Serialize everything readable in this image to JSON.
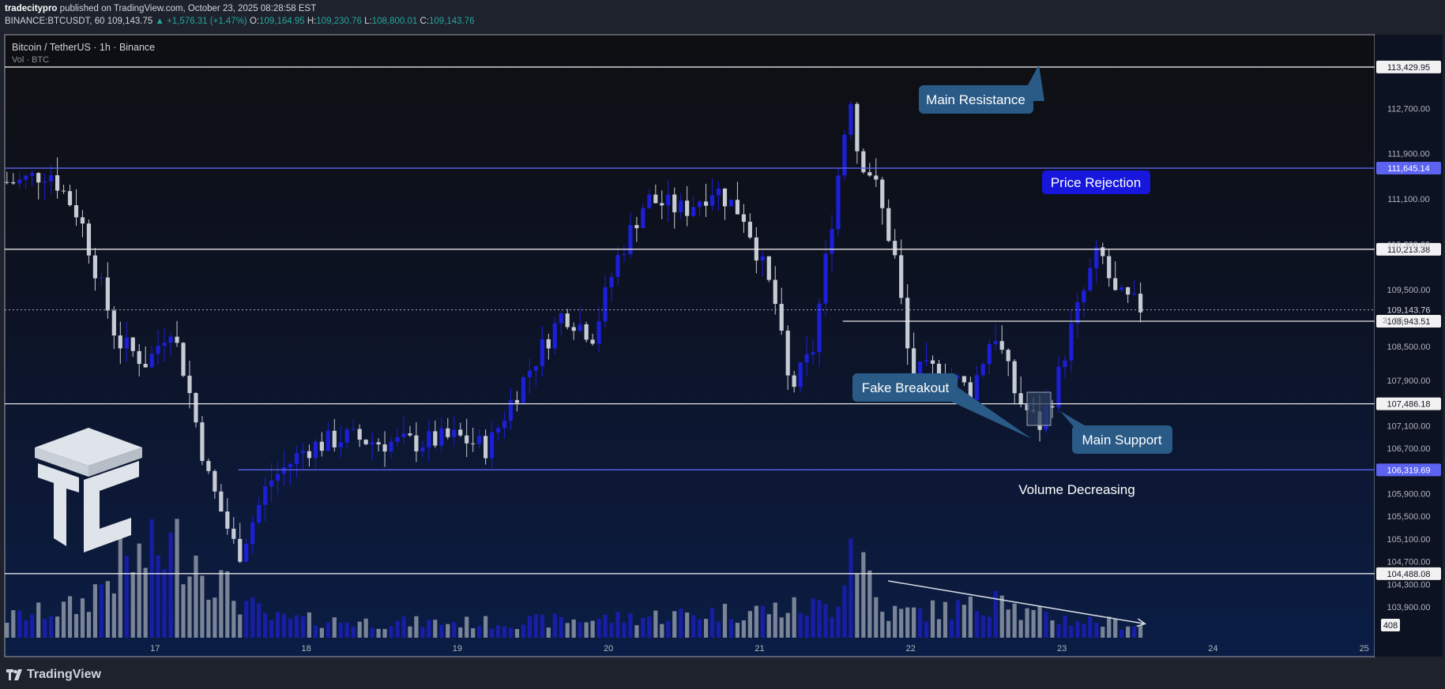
{
  "header": {
    "publisher": "tradecitypro",
    "published_text": "published on TradingView.com, October 23, 2025 08:28:58 EST",
    "symbol_line": {
      "symbol": "BINANCE:BTCUSDT, 60",
      "last": "109,143.75",
      "change": "+1,576.31 (+1.47%)",
      "o_label": "O:",
      "o": "109,164.95",
      "h_label": "H:",
      "h": "109,230.76",
      "l_label": "L:",
      "l": "108,800.01",
      "c_label": "C:",
      "c": "109,143.76"
    }
  },
  "legend": {
    "title": "Bitcoin / TetherUS · 1h · Binance",
    "volume_label": "Vol · BTC"
  },
  "footer": {
    "brand": "TradingView"
  },
  "colors": {
    "background_top": "#0f1013",
    "background_bottom": "#0c1a3b",
    "bull": "#1c1fd8",
    "bear": "#c7ccd4",
    "level_white": "#e6e6e6",
    "level_blue": "#5b63f0",
    "callout": "#2a5a86",
    "callout_bright": "#1616dd"
  },
  "chart_data": {
    "type": "candlestick",
    "price_axis": {
      "ticks": [
        "112,700.00",
        "111,900.00",
        "111,100.00",
        "110,300.00",
        "109,500.00",
        "108,500.00",
        "107,900.00",
        "107,100.00",
        "106,700.00",
        "105,900.00",
        "105,500.00",
        "105,100.00",
        "104,700.00",
        "104,300.00",
        "103,900.00"
      ],
      "tick_values": [
        112700,
        111900,
        111100,
        110300,
        109500,
        108500,
        107900,
        107100,
        106700,
        105900,
        105500,
        105100,
        104700,
        104300,
        103900
      ],
      "ylim": [
        103580,
        114000
      ]
    },
    "time_axis": {
      "labels": [
        "17",
        "18",
        "19",
        "20",
        "21",
        "22",
        "23",
        "24",
        "25"
      ]
    },
    "current_price": {
      "value": 109143.76,
      "label": "109,143.76",
      "countdown": "31:05"
    },
    "volume_last": "408",
    "levels": [
      {
        "name": "main-resistance-line",
        "value": 113429.95,
        "label": "113,429.95",
        "color": "#e6e6e6",
        "label_bg": "#f2f2f2",
        "label_fg": "#131722"
      },
      {
        "name": "upper-blue-line",
        "value": 111645.14,
        "label": "111,645.14",
        "color": "#5b63f0",
        "label_bg": "#5b63f0",
        "label_fg": "#ffffff"
      },
      {
        "name": "resistance-line",
        "value": 110213.38,
        "label": "110,213.38",
        "color": "#e6e6e6",
        "label_bg": "#f2f2f2",
        "label_fg": "#131722"
      },
      {
        "name": "breakout-line",
        "value": 108943.51,
        "label": "108,943.51",
        "color": "#e6e6e6",
        "label_bg": "#f2f2f2",
        "label_fg": "#131722",
        "from_day": 21.55
      },
      {
        "name": "support-line",
        "value": 107486.18,
        "label": "107,486.18",
        "color": "#e6e6e6",
        "label_bg": "#f2f2f2",
        "label_fg": "#131722"
      },
      {
        "name": "main-support-line",
        "value": 106319.69,
        "label": "106,319.69",
        "color": "#5b63f0",
        "label_bg": "#5b63f0",
        "label_fg": "#ffffff",
        "from_day": 17.55
      },
      {
        "name": "lower-line",
        "value": 104488.08,
        "label": "104,488.08",
        "color": "#e6e6e6",
        "label_bg": "#f2f2f2",
        "label_fg": "#131722"
      }
    ],
    "candle_path_days": [
      16.1,
      16.3,
      16.5,
      16.75,
      16.95,
      17.1,
      17.2,
      17.35,
      17.55,
      17.75,
      18.0,
      18.25,
      18.5,
      18.75,
      19.0,
      19.2,
      19.35,
      19.5,
      19.7,
      19.9,
      20.05,
      20.25,
      20.5,
      20.7,
      20.9,
      21.1,
      21.2,
      21.35,
      21.6,
      21.65,
      21.75,
      21.9,
      22.0,
      22.2,
      22.4,
      22.55,
      22.7,
      22.85,
      22.95,
      23.05,
      23.2,
      23.25,
      23.35,
      23.55
    ],
    "candle_path_prices": [
      111400,
      111600,
      110800,
      108600,
      108200,
      108900,
      108000,
      106200,
      104800,
      106100,
      106700,
      106900,
      106800,
      106800,
      106900,
      106700,
      107500,
      108200,
      109100,
      108700,
      110000,
      111100,
      110900,
      111300,
      110800,
      109300,
      107700,
      108400,
      113000,
      111900,
      111500,
      110000,
      108000,
      108100,
      107700,
      108800,
      107600,
      107100,
      107700,
      108700,
      109900,
      110200,
      109400,
      109150
    ],
    "volume_path_days": [
      16.0,
      16.5,
      16.75,
      17.2,
      17.5,
      17.75,
      18.5,
      19.3,
      20.0,
      21.5,
      21.6,
      21.7,
      21.8,
      22.0,
      22.5,
      22.6,
      22.7,
      23.0,
      23.3,
      23.55
    ],
    "volume_path": [
      0.15,
      0.25,
      0.55,
      0.75,
      0.35,
      0.15,
      0.12,
      0.12,
      0.15,
      0.25,
      0.8,
      0.6,
      0.2,
      0.2,
      0.25,
      0.5,
      0.2,
      0.15,
      0.12,
      0.1
    ],
    "volume_trendline": {
      "from_day": 21.85,
      "to_day": 23.55,
      "from_frac": 0.45,
      "to_frac": 0.11
    },
    "annotations": {
      "main_resistance": "Main Resistance",
      "price_rejection": "Price Rejection",
      "fake_breakout": "Fake Breakout",
      "main_support": "Main Support",
      "volume_decreasing": "Volume Decreasing"
    }
  }
}
